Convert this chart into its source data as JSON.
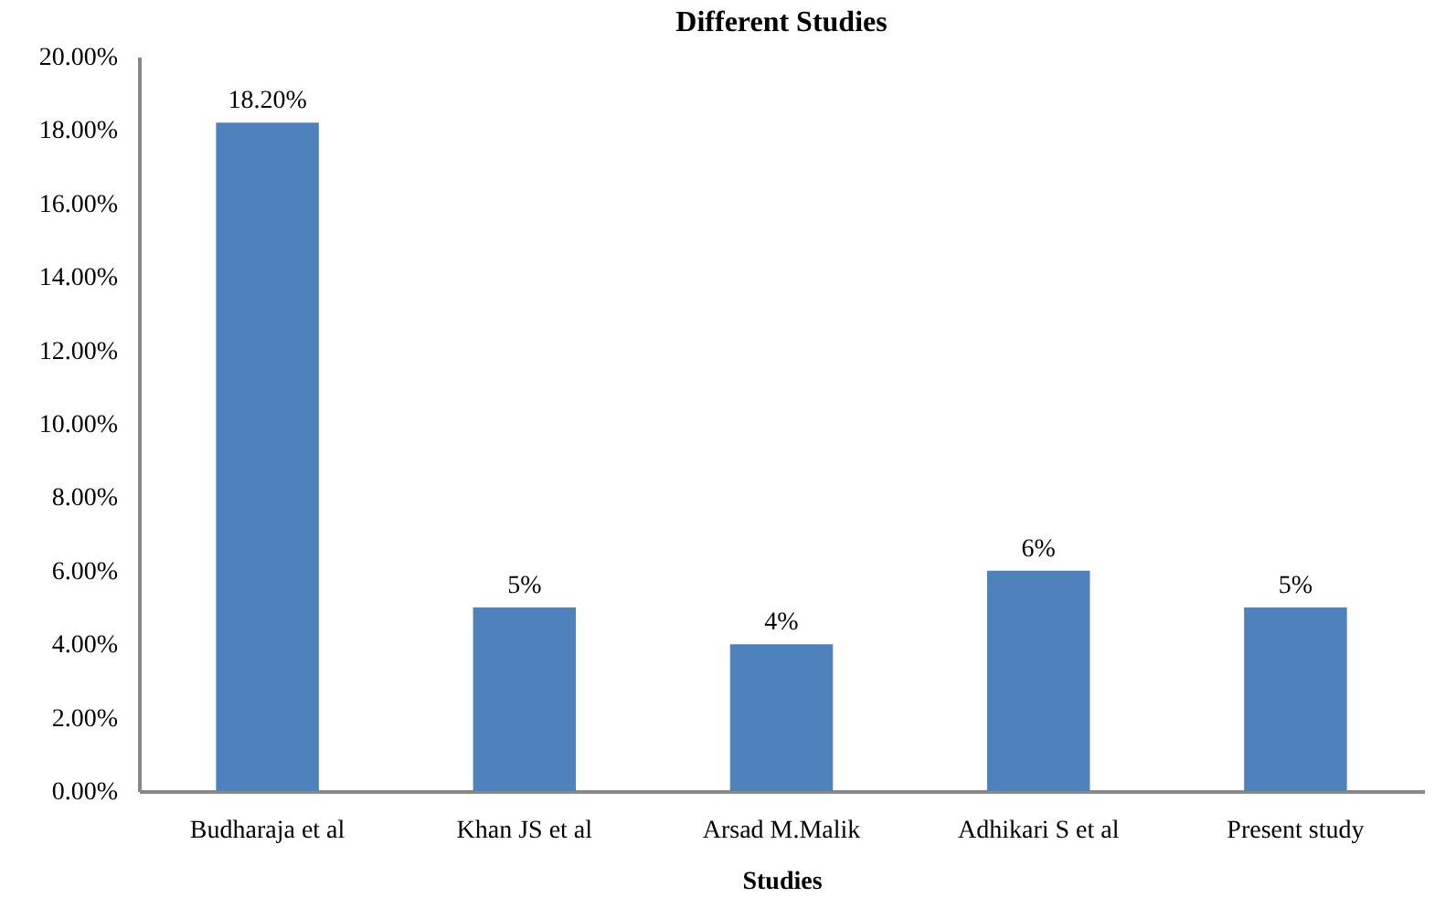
{
  "chart_data": {
    "type": "bar",
    "title": "Different Studies",
    "xlabel": "Studies",
    "categories": [
      "Budharaja et al",
      "Khan JS et al",
      "Arsad M.Malik",
      "Adhikari S et al",
      "Present study"
    ],
    "values": [
      18.2,
      5,
      4,
      6,
      5
    ],
    "color": "#4f81bd",
    "value_labels": [
      "18.20%",
      "5%",
      "4%",
      "6%",
      "5%"
    ],
    "ylim": [
      0,
      20
    ],
    "yticks": [
      {
        "value": 0,
        "label": "0.00%"
      },
      {
        "value": 2,
        "label": "2.00%"
      },
      {
        "value": 4,
        "label": "4.00%"
      },
      {
        "value": 6,
        "label": "6.00%"
      },
      {
        "value": 8,
        "label": "8.00%"
      },
      {
        "value": 10,
        "label": "10.00%"
      },
      {
        "value": 12,
        "label": "12.00%"
      },
      {
        "value": 14,
        "label": "14.00%"
      },
      {
        "value": 16,
        "label": "16.00%"
      },
      {
        "value": 18,
        "label": "18.00%"
      },
      {
        "value": 20,
        "label": "20.00%"
      }
    ],
    "grid": false
  }
}
